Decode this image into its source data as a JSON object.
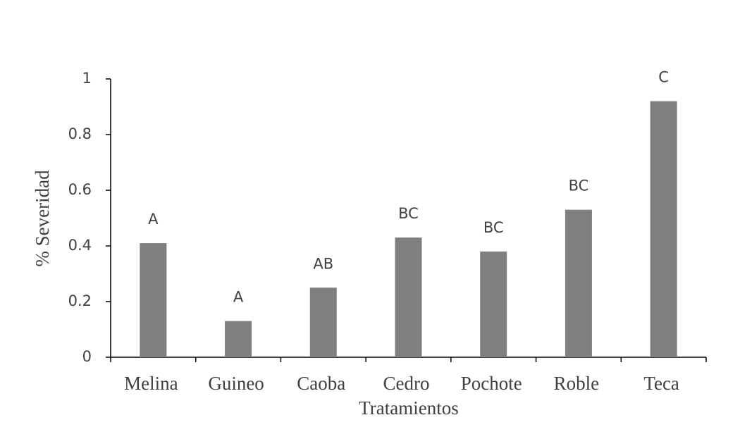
{
  "chart_data": {
    "type": "bar",
    "x_label": "Tratamientos",
    "y_label": "% Severidad",
    "categories": [
      "Melina",
      "Guineo",
      "Caoba",
      "Cedro",
      "Pochote",
      "Roble",
      "Teca"
    ],
    "values": [
      0.41,
      0.13,
      0.25,
      0.43,
      0.38,
      0.53,
      0.92
    ],
    "annotations": [
      "A",
      "A",
      "AB",
      "BC",
      "BC",
      "BC",
      "C"
    ],
    "color": "#7f7f7f",
    "ylim": [
      0,
      1
    ],
    "yticks": [
      0,
      0.2,
      0.4,
      0.6,
      0.8,
      1
    ],
    "grid": false
  }
}
